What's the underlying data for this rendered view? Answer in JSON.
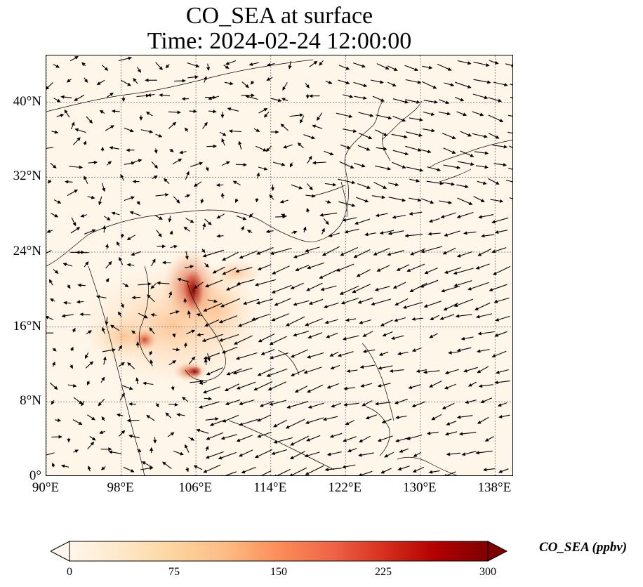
{
  "title": {
    "line1": "CO_SEA at surface",
    "line2": "Time: 2024-02-24 12:00:00"
  },
  "map": {
    "lon_range": [
      90,
      140
    ],
    "lat_range": [
      0,
      45
    ],
    "grid_lines": "dotted",
    "lat_ticks": [
      {
        "value": 0,
        "label": "0°"
      },
      {
        "value": 8,
        "label": "8°N"
      },
      {
        "value": 16,
        "label": "16°N"
      },
      {
        "value": 24,
        "label": "24°N"
      },
      {
        "value": 32,
        "label": "32°N"
      },
      {
        "value": 40,
        "label": "40°N"
      }
    ],
    "lon_ticks": [
      {
        "value": 90,
        "label": "90°E"
      },
      {
        "value": 98,
        "label": "98°E"
      },
      {
        "value": 106,
        "label": "106°E"
      },
      {
        "value": 114,
        "label": "114°E"
      },
      {
        "value": 122,
        "label": "122°E"
      },
      {
        "value": 130,
        "label": "130°E"
      },
      {
        "value": 138,
        "label": "138°E"
      }
    ],
    "field_colors": {
      "background": "#fff6ea",
      "coast": "#000000",
      "wind_arrows": "#000000"
    }
  },
  "colorbar": {
    "label": "CO_SEA (ppbv)",
    "min": 0,
    "max": 300,
    "extend": "both",
    "colormap": "OrRd",
    "ticks": [
      {
        "value": 0,
        "label": "0"
      },
      {
        "value": 75,
        "label": "75"
      },
      {
        "value": 150,
        "label": "150"
      },
      {
        "value": 225,
        "label": "225"
      },
      {
        "value": 300,
        "label": "300"
      }
    ],
    "stops": [
      "#fff7ec",
      "#fee8c8",
      "#fdd49e",
      "#fdbb84",
      "#fc8d59",
      "#ef6548",
      "#d7301f",
      "#b30000",
      "#7f0000"
    ]
  }
}
